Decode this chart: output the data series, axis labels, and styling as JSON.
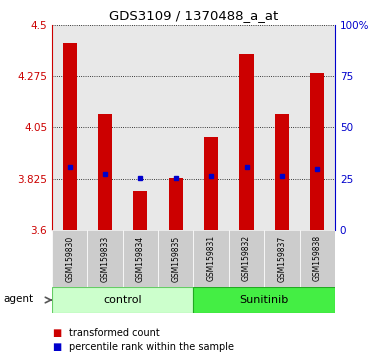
{
  "title": "GDS3109 / 1370488_a_at",
  "samples": [
    "GSM159830",
    "GSM159833",
    "GSM159834",
    "GSM159835",
    "GSM159831",
    "GSM159832",
    "GSM159837",
    "GSM159838"
  ],
  "bar_values": [
    4.42,
    4.11,
    3.77,
    3.83,
    4.01,
    4.37,
    4.11,
    4.29
  ],
  "percentile_values": [
    3.875,
    3.845,
    3.828,
    3.828,
    3.838,
    3.875,
    3.838,
    3.87
  ],
  "bar_base": 3.6,
  "ylim": [
    3.6,
    4.5
  ],
  "yticks": [
    3.6,
    3.825,
    4.05,
    4.275,
    4.5
  ],
  "ytick_labels": [
    "3.6",
    "3.825",
    "4.05",
    "4.275",
    "4.5"
  ],
  "y2ticks": [
    0,
    25,
    50,
    75,
    100
  ],
  "y2tick_labels": [
    "0",
    "25",
    "50",
    "75",
    "100%"
  ],
  "control_color": "#ccffcc",
  "control_border": "#66cc66",
  "sunitinib_color": "#44ee44",
  "sunitinib_border": "#22aa22",
  "bar_color": "#cc0000",
  "percentile_color": "#0000cc",
  "bar_width": 0.4,
  "plot_bg_color": "#e8e8e8",
  "label_bg_color": "#cccccc",
  "background_color": "#ffffff",
  "legend_items": [
    {
      "color": "#cc0000",
      "label": "transformed count"
    },
    {
      "color": "#0000cc",
      "label": "percentile rank within the sample"
    }
  ]
}
